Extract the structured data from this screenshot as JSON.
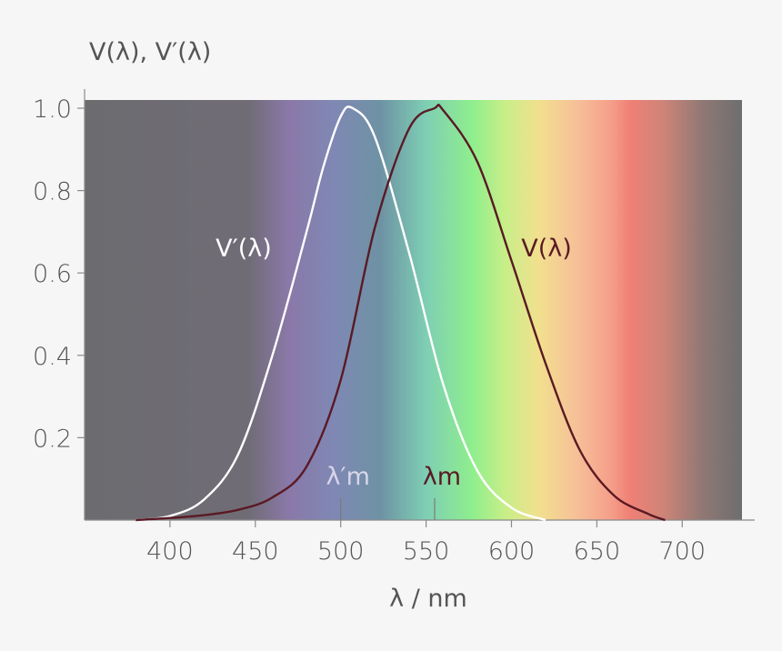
{
  "chart_data": {
    "type": "line",
    "ylabel": "V(λ), V′(λ)",
    "xlabel": "λ / nm",
    "xlim": [
      350,
      735
    ],
    "ylim": [
      0,
      1.02
    ],
    "x_ticks": [
      400,
      450,
      500,
      550,
      600,
      650,
      700
    ],
    "x_tick_labels": [
      "400",
      "450",
      "500",
      "550",
      "600",
      "650",
      "700"
    ],
    "y_ticks": [
      0.2,
      0.4,
      0.6,
      0.8,
      1.0
    ],
    "y_tick_labels": [
      "0.2",
      "0.4",
      "0.6",
      "0.8",
      "1.0"
    ],
    "grid": false,
    "background": "visible-spectrum gradient",
    "series": [
      {
        "name": "V′(λ)",
        "color": "#ffffff",
        "x": [
          380,
          400,
          420,
          440,
          460,
          480,
          490,
          500,
          507,
          520,
          540,
          560,
          580,
          600,
          620
        ],
        "y": [
          0.0,
          0.01,
          0.05,
          0.16,
          0.4,
          0.7,
          0.86,
          0.98,
          1.0,
          0.93,
          0.65,
          0.33,
          0.12,
          0.03,
          0.0
        ]
      },
      {
        "name": "V(λ)",
        "color": "#5a1a24",
        "x": [
          380,
          400,
          420,
          440,
          460,
          480,
          500,
          520,
          540,
          555,
          560,
          580,
          600,
          620,
          640,
          660,
          680,
          690
        ],
        "y": [
          0.0,
          0.005,
          0.012,
          0.025,
          0.055,
          0.13,
          0.34,
          0.71,
          0.95,
          1.0,
          0.995,
          0.87,
          0.63,
          0.38,
          0.17,
          0.06,
          0.015,
          0.0
        ]
      }
    ],
    "annotations": [
      {
        "text": "λ′m",
        "x": 500,
        "color": "#d9d6ea"
      },
      {
        "text": "λm",
        "x": 555,
        "color": "#5a1a24"
      }
    ]
  }
}
